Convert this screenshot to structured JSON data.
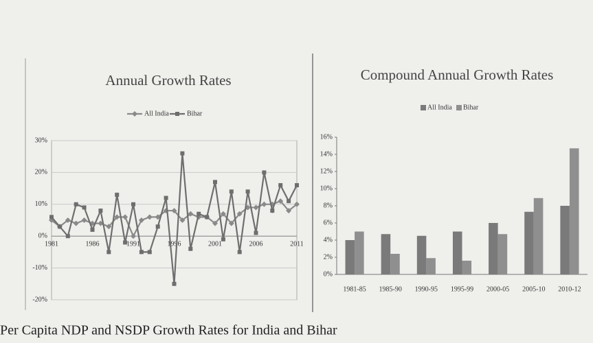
{
  "chart_data": [
    {
      "type": "line",
      "title": "Annual Growth Rates",
      "x": [
        1981,
        1982,
        1983,
        1984,
        1985,
        1986,
        1987,
        1988,
        1989,
        1990,
        1991,
        1992,
        1993,
        1994,
        1995,
        1996,
        1997,
        1998,
        1999,
        2000,
        2001,
        2002,
        2003,
        2004,
        2005,
        2006,
        2007,
        2008,
        2009,
        2010,
        2011
      ],
      "series": [
        {
          "name": "All India",
          "color": "#8a8a8a",
          "marker": "diamond",
          "values": [
            5,
            3,
            5,
            4,
            5,
            4,
            4,
            3,
            6,
            6,
            0,
            5,
            6,
            6,
            8,
            8,
            5,
            7,
            6,
            6,
            4,
            7,
            4,
            7,
            9,
            9,
            10,
            10,
            11,
            8,
            10
          ]
        },
        {
          "name": "Bihar",
          "color": "#6e6e6e",
          "marker": "square",
          "values": [
            6,
            3,
            0,
            10,
            9,
            2,
            8,
            -5,
            13,
            -2,
            10,
            -5,
            -5,
            3,
            12,
            -15,
            26,
            -4,
            7,
            6,
            17,
            -1,
            14,
            -5,
            14,
            1,
            20,
            8,
            16,
            11,
            16
          ]
        }
      ],
      "xlim": [
        1981,
        2011
      ],
      "xticks": [
        1981,
        1986,
        1991,
        1996,
        2001,
        2006,
        2011
      ],
      "ylim": [
        -20,
        30
      ],
      "yticks": [
        {
          "value": -20,
          "label": "-20%"
        },
        {
          "value": -10,
          "label": "-10%"
        },
        {
          "value": 0,
          "label": "0%"
        },
        {
          "value": 10,
          "label": "10%"
        },
        {
          "value": 20,
          "label": "20%"
        },
        {
          "value": 30,
          "label": "30%"
        }
      ],
      "grid": true,
      "legend": "top"
    },
    {
      "type": "bar",
      "title": "Compound Annual Growth Rates",
      "categories": [
        "1981-85",
        "1985-90",
        "1990-95",
        "1995-99",
        "2000-05",
        "2005-10",
        "2010-12"
      ],
      "series": [
        {
          "name": "All India",
          "color": "#7a7a7a",
          "values": [
            4,
            4.7,
            4.5,
            5,
            6,
            7.3,
            8
          ]
        },
        {
          "name": "Bihar",
          "color": "#8f8f8f",
          "values": [
            5,
            2.4,
            1.9,
            1.6,
            4.7,
            8.9,
            14.7
          ]
        }
      ],
      "ylim": [
        0,
        16
      ],
      "yticks": [
        {
          "value": 0,
          "label": "0%"
        },
        {
          "value": 2,
          "label": "2%"
        },
        {
          "value": 4,
          "label": "4%"
        },
        {
          "value": 6,
          "label": "6%"
        },
        {
          "value": 8,
          "label": "8%"
        },
        {
          "value": 10,
          "label": "10%"
        },
        {
          "value": 12,
          "label": "12%"
        },
        {
          "value": 14,
          "label": "14%"
        },
        {
          "value": 16,
          "label": "16%"
        }
      ],
      "grid": false,
      "legend": "top"
    }
  ],
  "caption": "Per Capita NDP and NSDP Growth Rates for India and Bihar"
}
